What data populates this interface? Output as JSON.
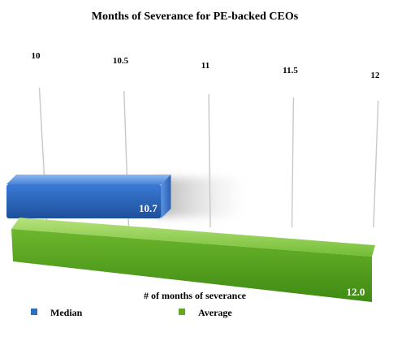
{
  "chart_data": {
    "type": "bar",
    "orientation": "horizontal",
    "title": "Months of Severance for PE-backed CEOs",
    "xlabel": "# of months of severance",
    "ylabel": "",
    "xlim": [
      10,
      12
    ],
    "x_ticks": [
      "10",
      "10.5",
      "11",
      "11.5",
      "12"
    ],
    "grid": true,
    "legend_position": "bottom",
    "series": [
      {
        "name": "Median",
        "value": 10.7,
        "label": "10.7",
        "color": "#2e6fc4"
      },
      {
        "name": "Average",
        "value": 12.0,
        "label": "12.0",
        "color": "#5faa22"
      }
    ]
  }
}
